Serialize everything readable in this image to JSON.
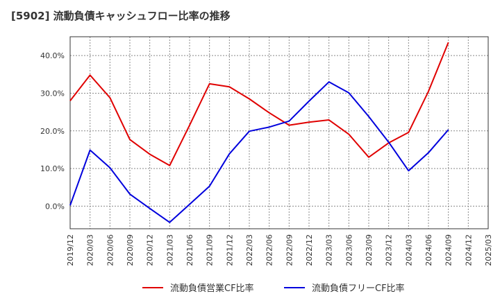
{
  "title": "[5902]  流動負債キャッシュフロー比率の推移",
  "chart_data": {
    "type": "line",
    "x": [
      "2019/12",
      "2020/03",
      "2020/06",
      "2020/09",
      "2020/12",
      "2021/03",
      "2021/06",
      "2021/09",
      "2021/12",
      "2022/03",
      "2022/06",
      "2022/09",
      "2022/12",
      "2023/03",
      "2023/06",
      "2023/09",
      "2023/12",
      "2024/03",
      "2024/06",
      "2024/09",
      "2024/12",
      "2025/03"
    ],
    "y_ticks": [
      "0.0%",
      "10.0%",
      "20.0%",
      "30.0%",
      "40.0%"
    ],
    "y_tick_values": [
      0,
      10,
      20,
      30,
      40
    ],
    "ylim": [
      -6,
      45
    ],
    "grid": true,
    "legend_position": "bottom",
    "series": [
      {
        "name": "流動負債営業CF比率",
        "color": "#e00000",
        "values": [
          28.0,
          34.8,
          28.8,
          17.7,
          13.8,
          10.8,
          21.5,
          32.5,
          31.7,
          28.5,
          24.8,
          21.5,
          22.3,
          22.9,
          19.1,
          13.0,
          16.8,
          19.6,
          30.5,
          43.5,
          null,
          null
        ]
      },
      {
        "name": "流動負債フリーCF比率",
        "color": "#0000dd",
        "values": [
          0.2,
          14.9,
          10.2,
          3.2,
          -0.6,
          -4.3,
          0.5,
          5.3,
          13.9,
          19.9,
          21.0,
          22.6,
          27.9,
          33.0,
          30.1,
          23.8,
          17.0,
          9.4,
          14.2,
          20.3,
          null,
          null
        ]
      }
    ]
  }
}
